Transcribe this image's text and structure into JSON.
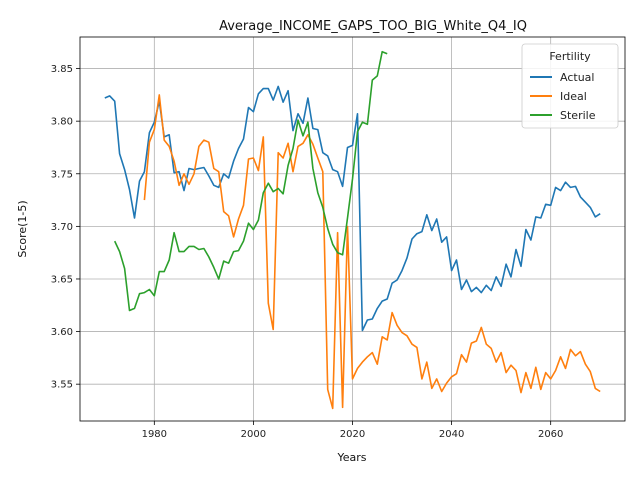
{
  "chart_data": {
    "type": "line",
    "title": "Average_INCOME_GAPS_TOO_BIG_White_Q4_IQ",
    "xlabel": "Years",
    "ylabel": "Score(1-5)",
    "xlim": [
      1965,
      2075
    ],
    "ylim": [
      3.515,
      3.88
    ],
    "xticks": [
      1980,
      2000,
      2020,
      2040,
      2060
    ],
    "yticks": [
      3.55,
      3.6,
      3.65,
      3.7,
      3.75,
      3.8,
      3.85
    ],
    "grid": true,
    "legend": {
      "title": "Fertility",
      "placement": "top-right"
    },
    "series": [
      {
        "name": "Actual",
        "color": "#1f77b4",
        "x": [
          1970,
          1971,
          1972,
          1973,
          1974,
          1975,
          1976,
          1977,
          1978,
          1979,
          1980,
          1981,
          1982,
          1983,
          1984,
          1985,
          1986,
          1987,
          1988,
          1989,
          1990,
          1991,
          1992,
          1993,
          1994,
          1995,
          1996,
          1997,
          1998,
          1999,
          2000,
          2001,
          2002,
          2003,
          2004,
          2005,
          2006,
          2007,
          2008,
          2009,
          2010,
          2011,
          2012,
          2013,
          2014,
          2015,
          2016,
          2017,
          2018,
          2019,
          2020,
          2021,
          2022,
          2023,
          2024,
          2025,
          2026,
          2027,
          2028,
          2029,
          2030,
          2031,
          2032,
          2033,
          2034,
          2035,
          2036,
          2037,
          2038,
          2039,
          2040,
          2041,
          2042,
          2043,
          2044,
          2045,
          2046,
          2047,
          2048,
          2049,
          2050,
          2051,
          2052,
          2053,
          2054,
          2055,
          2056,
          2057,
          2058,
          2059,
          2060,
          2061,
          2062,
          2063,
          2064,
          2065,
          2066,
          2067,
          2068,
          2069,
          2070
        ],
        "values": [
          3.822,
          3.824,
          3.819,
          3.769,
          3.754,
          3.735,
          3.708,
          3.743,
          3.752,
          3.789,
          3.799,
          3.819,
          3.785,
          3.787,
          3.751,
          3.752,
          3.734,
          3.755,
          3.754,
          3.755,
          3.756,
          3.748,
          3.739,
          3.737,
          3.75,
          3.746,
          3.762,
          3.774,
          3.783,
          3.813,
          3.809,
          3.826,
          3.831,
          3.831,
          3.82,
          3.833,
          3.818,
          3.829,
          3.791,
          3.807,
          3.798,
          3.822,
          3.793,
          3.792,
          3.77,
          3.767,
          3.754,
          3.752,
          3.738,
          3.775,
          3.777,
          3.807,
          3.601,
          3.611,
          3.612,
          3.622,
          3.629,
          3.631,
          3.646,
          3.649,
          3.658,
          3.67,
          3.688,
          3.693,
          3.695,
          3.711,
          3.696,
          3.707,
          3.685,
          3.69,
          3.658,
          3.668,
          3.64,
          3.649,
          3.638,
          3.642,
          3.637,
          3.644,
          3.639,
          3.652,
          3.643,
          3.664,
          3.652,
          3.678,
          3.662,
          3.697,
          3.687,
          3.709,
          3.708,
          3.721,
          3.72,
          3.737,
          3.734,
          3.742,
          3.737,
          3.738,
          3.728,
          3.723,
          3.718,
          3.709,
          3.712
        ]
      },
      {
        "name": "Ideal",
        "color": "#ff7f0e",
        "x": [
          1978,
          1979,
          1980,
          1981,
          1982,
          1983,
          1984,
          1985,
          1986,
          1987,
          1988,
          1989,
          1990,
          1991,
          1992,
          1993,
          1994,
          1995,
          1996,
          1997,
          1998,
          1999,
          2000,
          2001,
          2002,
          2003,
          2004,
          2005,
          2006,
          2007,
          2008,
          2009,
          2010,
          2011,
          2012,
          2013,
          2014,
          2015,
          2016,
          2017,
          2018,
          2019,
          2020,
          2021,
          2022,
          2023,
          2024,
          2025,
          2026,
          2027,
          2028,
          2029,
          2030,
          2031,
          2032,
          2033,
          2034,
          2035,
          2036,
          2037,
          2038,
          2039,
          2040,
          2041,
          2042,
          2043,
          2044,
          2045,
          2046,
          2047,
          2048,
          2049,
          2050,
          2051,
          2052,
          2053,
          2054,
          2055,
          2056,
          2057,
          2058,
          2059,
          2060,
          2061,
          2062,
          2063,
          2064,
          2065,
          2066,
          2067,
          2068,
          2069,
          2070
        ],
        "values": [
          3.725,
          3.78,
          3.792,
          3.825,
          3.782,
          3.776,
          3.762,
          3.739,
          3.75,
          3.74,
          3.75,
          3.776,
          3.782,
          3.78,
          3.755,
          3.752,
          3.714,
          3.71,
          3.69,
          3.707,
          3.72,
          3.764,
          3.765,
          3.753,
          3.785,
          3.627,
          3.602,
          3.77,
          3.765,
          3.779,
          3.752,
          3.776,
          3.779,
          3.787,
          3.778,
          3.765,
          3.752,
          3.545,
          3.527,
          3.694,
          3.528,
          3.7,
          3.555,
          3.565,
          3.571,
          3.576,
          3.58,
          3.569,
          3.595,
          3.592,
          3.618,
          3.606,
          3.599,
          3.596,
          3.588,
          3.585,
          3.555,
          3.571,
          3.546,
          3.555,
          3.543,
          3.551,
          3.557,
          3.56,
          3.578,
          3.571,
          3.589,
          3.591,
          3.604,
          3.588,
          3.584,
          3.571,
          3.58,
          3.561,
          3.568,
          3.563,
          3.542,
          3.561,
          3.546,
          3.566,
          3.545,
          3.561,
          3.555,
          3.563,
          3.576,
          3.565,
          3.583,
          3.577,
          3.581,
          3.569,
          3.562,
          3.546,
          3.543
        ]
      },
      {
        "name": "Sterile",
        "color": "#2ca02c",
        "x": [
          1972,
          1973,
          1974,
          1975,
          1976,
          1977,
          1978,
          1979,
          1980,
          1981,
          1982,
          1983,
          1984,
          1985,
          1986,
          1987,
          1988,
          1989,
          1990,
          1991,
          1992,
          1993,
          1994,
          1995,
          1996,
          1997,
          1998,
          1999,
          2000,
          2001,
          2002,
          2003,
          2004,
          2005,
          2006,
          2007,
          2008,
          2009,
          2010,
          2011,
          2012,
          2013,
          2014,
          2015,
          2016,
          2017,
          2018,
          2019,
          2020,
          2021,
          2022,
          2023,
          2024,
          2025,
          2026,
          2027
        ],
        "values": [
          3.686,
          3.676,
          3.66,
          3.62,
          3.622,
          3.636,
          3.637,
          3.64,
          3.634,
          3.657,
          3.657,
          3.668,
          3.694,
          3.676,
          3.676,
          3.681,
          3.681,
          3.678,
          3.679,
          3.671,
          3.661,
          3.65,
          3.667,
          3.665,
          3.676,
          3.677,
          3.686,
          3.703,
          3.697,
          3.706,
          3.732,
          3.741,
          3.733,
          3.736,
          3.731,
          3.758,
          3.774,
          3.801,
          3.786,
          3.799,
          3.755,
          3.732,
          3.718,
          3.698,
          3.683,
          3.675,
          3.673,
          3.708,
          3.745,
          3.79,
          3.799,
          3.797,
          3.839,
          3.843,
          3.866,
          3.864
        ]
      }
    ]
  }
}
